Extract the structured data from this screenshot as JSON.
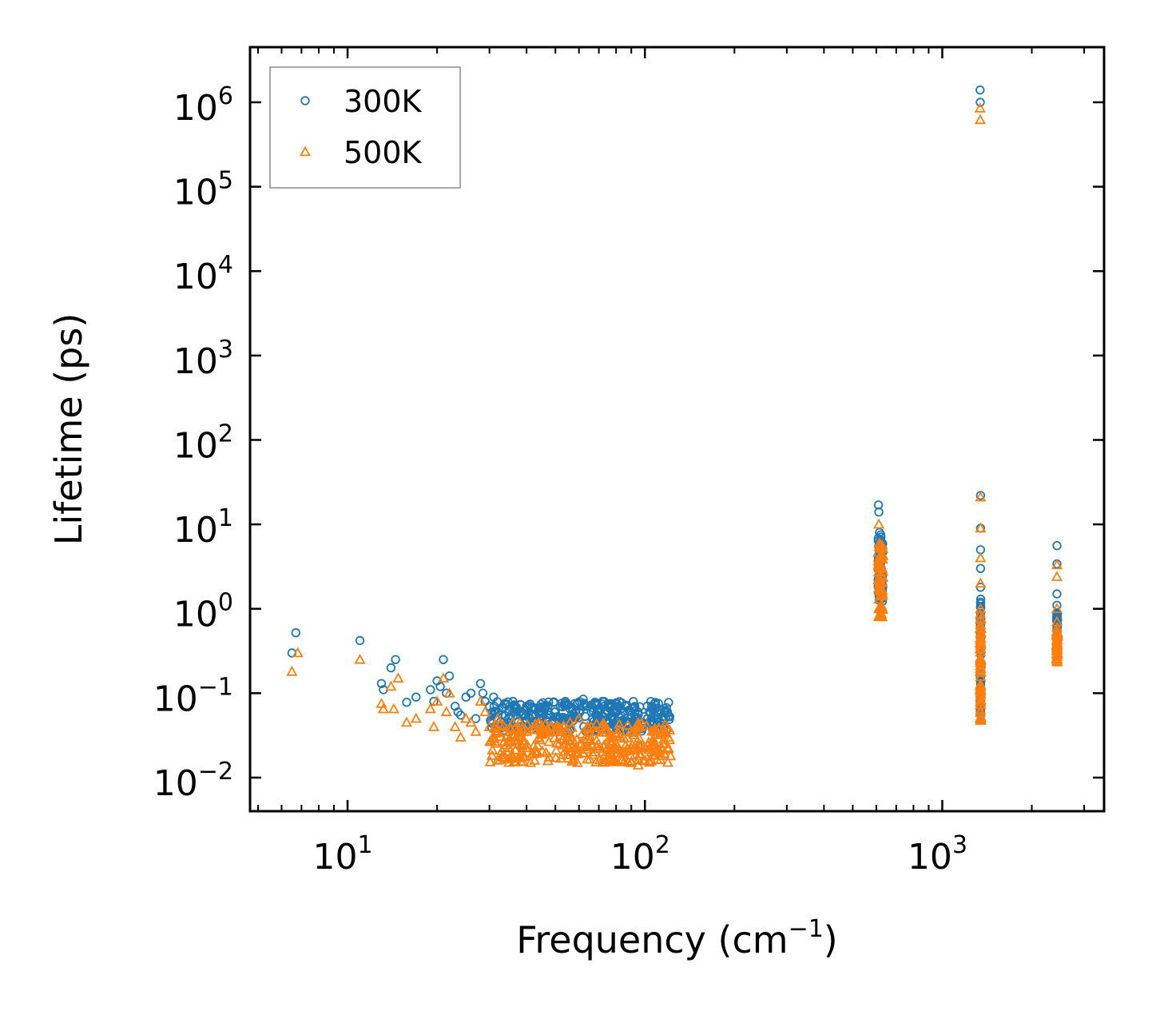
{
  "chart_data": {
    "type": "scatter",
    "xscale": "log",
    "yscale": "log",
    "xlabel_main": "Frequency (cm",
    "xlabel_sup": "−1",
    "xlabel_close": ")",
    "ylabel": "Lifetime (ps)",
    "xlim": [
      4.7,
      3500
    ],
    "ylim": [
      0.004,
      4500000
    ],
    "x_ticks": [
      {
        "value": 10,
        "base": "10",
        "exp": "1"
      },
      {
        "value": 100,
        "base": "10",
        "exp": "2"
      },
      {
        "value": 1000,
        "base": "10",
        "exp": "3"
      }
    ],
    "y_ticks": [
      {
        "value": 0.01,
        "base": "10",
        "exp": "−2"
      },
      {
        "value": 0.1,
        "base": "10",
        "exp": "−1"
      },
      {
        "value": 1,
        "base": "10",
        "exp": "0"
      },
      {
        "value": 10,
        "base": "10",
        "exp": "1"
      },
      {
        "value": 100,
        "base": "10",
        "exp": "2"
      },
      {
        "value": 1000,
        "base": "10",
        "exp": "3"
      },
      {
        "value": 10000,
        "base": "10",
        "exp": "4"
      },
      {
        "value": 100000,
        "base": "10",
        "exp": "5"
      },
      {
        "value": 1000000,
        "base": "10",
        "exp": "6"
      }
    ],
    "legend_position": "top-left",
    "series": [
      {
        "name": "300K",
        "color": "#1f77b4",
        "marker": "circle",
        "points": [
          [
            6.5,
            0.3
          ],
          [
            6.7,
            0.52
          ],
          [
            11,
            0.42
          ],
          [
            13,
            0.13
          ],
          [
            13.2,
            0.11
          ],
          [
            14,
            0.2
          ],
          [
            14.5,
            0.25
          ],
          [
            15.8,
            0.078
          ],
          [
            17,
            0.09
          ],
          [
            19,
            0.11
          ],
          [
            19.5,
            0.08
          ],
          [
            20,
            0.14
          ],
          [
            20.5,
            0.12
          ],
          [
            21,
            0.25
          ],
          [
            21.5,
            0.1
          ],
          [
            22,
            0.16
          ],
          [
            23,
            0.07
          ],
          [
            23.5,
            0.06
          ],
          [
            24,
            0.055
          ],
          [
            25,
            0.09
          ],
          [
            26,
            0.1
          ],
          [
            27,
            0.05
          ],
          [
            28,
            0.13
          ],
          [
            28.5,
            0.1
          ],
          [
            29,
            0.08
          ],
          [
            30,
            0.07
          ],
          [
            31,
            0.09
          ],
          [
            32,
            0.06
          ],
          [
            33,
            0.055
          ],
          [
            34,
            0.075
          ],
          [
            35,
            0.07
          ],
          [
            36,
            0.08
          ],
          [
            37,
            0.065
          ],
          [
            38,
            0.06
          ],
          [
            40,
            0.07
          ],
          [
            42,
            0.055
          ],
          [
            44,
            0.06
          ],
          [
            46,
            0.065
          ],
          [
            48,
            0.055
          ],
          [
            50,
            0.06
          ],
          [
            52,
            0.07
          ],
          [
            54,
            0.08
          ],
          [
            56,
            0.065
          ],
          [
            58,
            0.075
          ],
          [
            60,
            0.06
          ],
          [
            62,
            0.085
          ],
          [
            64,
            0.07
          ],
          [
            66,
            0.06
          ],
          [
            68,
            0.075
          ],
          [
            70,
            0.065
          ],
          [
            72,
            0.08
          ],
          [
            75,
            0.07
          ],
          [
            78,
            0.06
          ],
          [
            80,
            0.075
          ],
          [
            83,
            0.065
          ],
          [
            86,
            0.07
          ],
          [
            90,
            0.055
          ],
          [
            94,
            0.05
          ],
          [
            98,
            0.045
          ],
          [
            102,
            0.05
          ],
          [
            106,
            0.045
          ],
          [
            110,
            0.048
          ],
          [
            115,
            0.05
          ],
          [
            120,
            0.053
          ],
          [
            610,
            17
          ],
          [
            612,
            14
          ],
          [
            615,
            8
          ],
          [
            618,
            6
          ],
          [
            620,
            4.5
          ],
          [
            623,
            3
          ],
          [
            625,
            2
          ],
          [
            628,
            1.5
          ],
          [
            1340,
            1400000
          ],
          [
            1342,
            1000000
          ],
          [
            1345,
            22
          ],
          [
            1345,
            9
          ],
          [
            1345,
            5
          ],
          [
            1345,
            3
          ],
          [
            1345,
            1.8
          ],
          [
            1345,
            1.2
          ],
          [
            1345,
            0.8
          ],
          [
            1345,
            0.5
          ],
          [
            1345,
            0.3
          ],
          [
            1345,
            0.2
          ],
          [
            1345,
            0.1
          ],
          [
            1345,
            0.07
          ],
          [
            2430,
            5.6
          ],
          [
            2430,
            3.4
          ],
          [
            2430,
            1.5
          ],
          [
            2430,
            1.1
          ],
          [
            2430,
            0.8
          ],
          [
            2430,
            0.6
          ],
          [
            2430,
            0.5
          ],
          [
            2430,
            0.4
          ],
          [
            2430,
            0.35
          ]
        ],
        "bands": [
          {
            "x_from": 30,
            "x_to": 122,
            "y_lo": 0.035,
            "y_hi": 0.08,
            "count": 320
          },
          {
            "x_from": 608,
            "x_to": 632,
            "y_lo": 1.2,
            "y_hi": 8,
            "count": 60
          },
          {
            "x_from": 1342,
            "x_to": 1348,
            "y_lo": 0.055,
            "y_hi": 1.5,
            "count": 60
          },
          {
            "x_from": 2425,
            "x_to": 2440,
            "y_lo": 0.35,
            "y_hi": 0.9,
            "count": 40
          }
        ]
      },
      {
        "name": "500K",
        "color": "#ff7f0e",
        "marker": "triangle",
        "points": [
          [
            6.5,
            0.18
          ],
          [
            6.8,
            0.3
          ],
          [
            11,
            0.25
          ],
          [
            13,
            0.075
          ],
          [
            13.2,
            0.065
          ],
          [
            14,
            0.12
          ],
          [
            14.3,
            0.065
          ],
          [
            14.8,
            0.15
          ],
          [
            15.8,
            0.045
          ],
          [
            17,
            0.05
          ],
          [
            19,
            0.065
          ],
          [
            19.5,
            0.04
          ],
          [
            20,
            0.08
          ],
          [
            21,
            0.15
          ],
          [
            21.5,
            0.06
          ],
          [
            22,
            0.1
          ],
          [
            23,
            0.04
          ],
          [
            24,
            0.03
          ],
          [
            25,
            0.05
          ],
          [
            26,
            0.045
          ],
          [
            27,
            0.035
          ],
          [
            28,
            0.08
          ],
          [
            29,
            0.06
          ],
          [
            30,
            0.04
          ],
          [
            32,
            0.05
          ],
          [
            34,
            0.035
          ],
          [
            36,
            0.045
          ],
          [
            38,
            0.03
          ],
          [
            40,
            0.035
          ],
          [
            44,
            0.03
          ],
          [
            48,
            0.04
          ],
          [
            52,
            0.035
          ],
          [
            56,
            0.045
          ],
          [
            60,
            0.05
          ],
          [
            64,
            0.04
          ],
          [
            68,
            0.035
          ],
          [
            72,
            0.04
          ],
          [
            76,
            0.03
          ],
          [
            80,
            0.025
          ],
          [
            85,
            0.02
          ],
          [
            90,
            0.015
          ],
          [
            95,
            0.014
          ],
          [
            100,
            0.016
          ],
          [
            105,
            0.02
          ],
          [
            110,
            0.022
          ],
          [
            115,
            0.025
          ],
          [
            120,
            0.03
          ],
          [
            612,
            10
          ],
          [
            615,
            6
          ],
          [
            618,
            4
          ],
          [
            620,
            2.5
          ],
          [
            623,
            1.5
          ],
          [
            626,
            1
          ],
          [
            628,
            0.8
          ],
          [
            1340,
            850000
          ],
          [
            1342,
            620000
          ],
          [
            1345,
            21
          ],
          [
            1345,
            9
          ],
          [
            1345,
            4
          ],
          [
            1345,
            2
          ],
          [
            1345,
            1
          ],
          [
            1345,
            0.5
          ],
          [
            1345,
            0.25
          ],
          [
            1345,
            0.12
          ],
          [
            1345,
            0.08
          ],
          [
            1345,
            0.05
          ],
          [
            2430,
            3.3
          ],
          [
            2430,
            2.4
          ],
          [
            2430,
            1
          ],
          [
            2430,
            0.7
          ],
          [
            2430,
            0.5
          ],
          [
            2430,
            0.35
          ],
          [
            2430,
            0.25
          ]
        ],
        "bands": [
          {
            "x_from": 30,
            "x_to": 122,
            "y_lo": 0.015,
            "y_hi": 0.045,
            "count": 320
          },
          {
            "x_from": 608,
            "x_to": 632,
            "y_lo": 0.8,
            "y_hi": 6,
            "count": 60
          },
          {
            "x_from": 1342,
            "x_to": 1348,
            "y_lo": 0.045,
            "y_hi": 0.9,
            "count": 60
          },
          {
            "x_from": 2425,
            "x_to": 2440,
            "y_lo": 0.23,
            "y_hi": 0.6,
            "count": 40
          }
        ]
      }
    ]
  }
}
